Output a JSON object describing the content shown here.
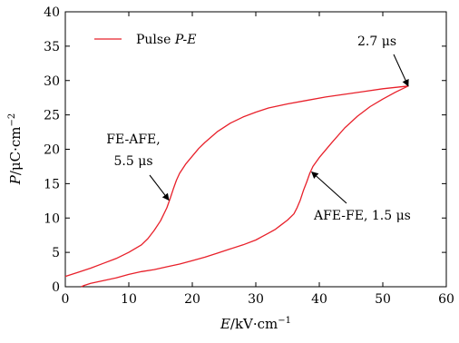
{
  "chart_data": {
    "type": "line",
    "xlabel": {
      "var": "E",
      "unit": "/kV·cm",
      "exp": "−1"
    },
    "ylabel": {
      "var": "P",
      "unit": "/μC·cm",
      "exp": "−2"
    },
    "xlim": [
      0,
      60
    ],
    "ylim": [
      0,
      40
    ],
    "xticks": [
      0,
      10,
      20,
      30,
      40,
      50,
      60
    ],
    "yticks": [
      0,
      5,
      10,
      15,
      20,
      25,
      30,
      35,
      40
    ],
    "grid": false,
    "legend": {
      "placement": "top-left",
      "text_plain": "Pulse ",
      "text_italic": "P-E"
    },
    "series": [
      {
        "name": "Pulse P-E",
        "color": "#e8202a",
        "upper": [
          [
            0,
            1.5
          ],
          [
            2,
            2.1
          ],
          [
            4,
            2.7
          ],
          [
            6,
            3.4
          ],
          [
            8,
            4.1
          ],
          [
            10,
            5.0
          ],
          [
            12,
            6.1
          ],
          [
            13,
            7.0
          ],
          [
            14,
            8.2
          ],
          [
            15,
            9.6
          ],
          [
            16,
            11.5
          ],
          [
            16.5,
            12.8
          ],
          [
            17,
            14.2
          ],
          [
            17.5,
            15.5
          ],
          [
            18,
            16.5
          ],
          [
            19,
            17.9
          ],
          [
            20,
            19.0
          ],
          [
            21,
            20.1
          ],
          [
            22,
            21.0
          ],
          [
            24,
            22.6
          ],
          [
            26,
            23.8
          ],
          [
            28,
            24.7
          ],
          [
            30,
            25.4
          ],
          [
            32,
            26.0
          ],
          [
            35,
            26.6
          ],
          [
            38,
            27.1
          ],
          [
            41,
            27.6
          ],
          [
            44,
            28.0
          ],
          [
            47,
            28.4
          ],
          [
            50,
            28.8
          ],
          [
            52,
            29.0
          ],
          [
            54,
            29.2
          ]
        ],
        "lower": [
          [
            54,
            29.2
          ],
          [
            52,
            28.3
          ],
          [
            50,
            27.3
          ],
          [
            48,
            26.2
          ],
          [
            46,
            24.8
          ],
          [
            44,
            23.1
          ],
          [
            42,
            21.0
          ],
          [
            40,
            18.8
          ],
          [
            39,
            17.5
          ],
          [
            38.5,
            16.5
          ],
          [
            38,
            15.2
          ],
          [
            37.5,
            14.0
          ],
          [
            37,
            12.6
          ],
          [
            36.5,
            11.5
          ],
          [
            36,
            10.6
          ],
          [
            35,
            9.7
          ],
          [
            34,
            9.0
          ],
          [
            33,
            8.3
          ],
          [
            32,
            7.8
          ],
          [
            31,
            7.3
          ],
          [
            30,
            6.8
          ],
          [
            28,
            6.1
          ],
          [
            26,
            5.5
          ],
          [
            24,
            4.9
          ],
          [
            22,
            4.3
          ],
          [
            20,
            3.8
          ],
          [
            18,
            3.3
          ],
          [
            16,
            2.9
          ],
          [
            14,
            2.5
          ],
          [
            12,
            2.2
          ],
          [
            10,
            1.8
          ],
          [
            8,
            1.3
          ],
          [
            6,
            0.9
          ],
          [
            4,
            0.5
          ],
          [
            3,
            0.2
          ],
          [
            2.5,
            0.0
          ]
        ]
      }
    ],
    "annotations": [
      {
        "id": "fe-afe",
        "lines": [
          "FE-AFE,",
          "5.5 μs"
        ],
        "point": [
          16.3,
          12.6
        ]
      },
      {
        "id": "top",
        "lines": [
          "2.7 μs"
        ],
        "point": [
          54,
          29.2
        ]
      },
      {
        "id": "afe-fe",
        "lines": [
          "AFE-FE, 1.5 μs"
        ],
        "point": [
          38.8,
          16.7
        ]
      }
    ]
  }
}
